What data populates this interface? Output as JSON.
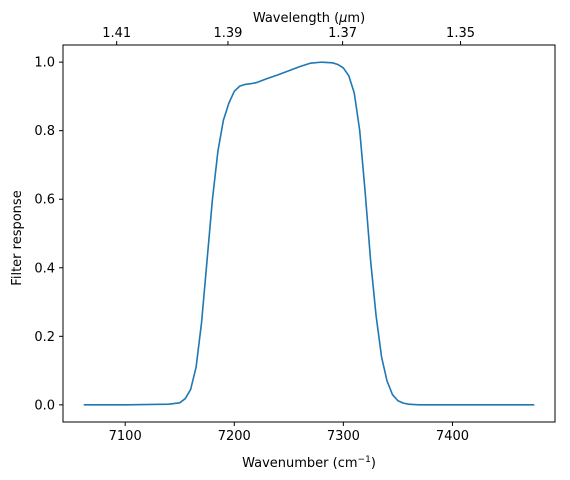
{
  "chart_data": {
    "type": "line",
    "title": "",
    "xlabel": "Wavenumber (cm",
    "xlabel_sup": "−1",
    "xlabel_end": ")",
    "ylabel": "Filter response",
    "top_xlabel": "Wavelength (",
    "top_xlabel_mu": "μ",
    "top_xlabel_end": "m)",
    "xlim": [
      7043,
      7494
    ],
    "ylim": [
      -0.05,
      1.05
    ],
    "grid": false,
    "line_color": "#1f77b4",
    "x_ticks": [
      {
        "value": 7100,
        "label": "7100"
      },
      {
        "value": 7200,
        "label": "7200"
      },
      {
        "value": 7300,
        "label": "7300"
      },
      {
        "value": 7400,
        "label": "7400"
      }
    ],
    "y_ticks": [
      {
        "value": 0.0,
        "label": "0.0"
      },
      {
        "value": 0.2,
        "label": "0.2"
      },
      {
        "value": 0.4,
        "label": "0.4"
      },
      {
        "value": 0.6,
        "label": "0.6"
      },
      {
        "value": 0.8,
        "label": "0.8"
      },
      {
        "value": 1.0,
        "label": "1.0"
      }
    ],
    "top_ticks": [
      {
        "value": 7092.2,
        "label": "1.41"
      },
      {
        "value": 7194.2,
        "label": "1.39"
      },
      {
        "value": 7299.3,
        "label": "1.37"
      },
      {
        "value": 7407.4,
        "label": "1.35"
      }
    ],
    "series": [
      {
        "x": [
          7062,
          7100,
          7140,
          7150,
          7155,
          7160,
          7165,
          7170,
          7175,
          7180,
          7185,
          7190,
          7195,
          7200,
          7205,
          7210,
          7215,
          7220,
          7230,
          7240,
          7250,
          7260,
          7270,
          7280,
          7290,
          7295,
          7300,
          7305,
          7310,
          7315,
          7320,
          7325,
          7330,
          7335,
          7340,
          7345,
          7350,
          7355,
          7360,
          7365,
          7370,
          7380,
          7400,
          7440,
          7475
        ],
        "y": [
          0.0,
          0.0,
          0.002,
          0.006,
          0.018,
          0.045,
          0.11,
          0.24,
          0.42,
          0.6,
          0.74,
          0.83,
          0.88,
          0.915,
          0.93,
          0.935,
          0.937,
          0.94,
          0.952,
          0.963,
          0.975,
          0.987,
          0.997,
          1.0,
          0.998,
          0.993,
          0.983,
          0.96,
          0.91,
          0.8,
          0.62,
          0.42,
          0.26,
          0.14,
          0.07,
          0.03,
          0.012,
          0.005,
          0.002,
          0.001,
          0.0,
          0.0,
          0.0,
          0.0,
          0.0
        ]
      }
    ]
  }
}
